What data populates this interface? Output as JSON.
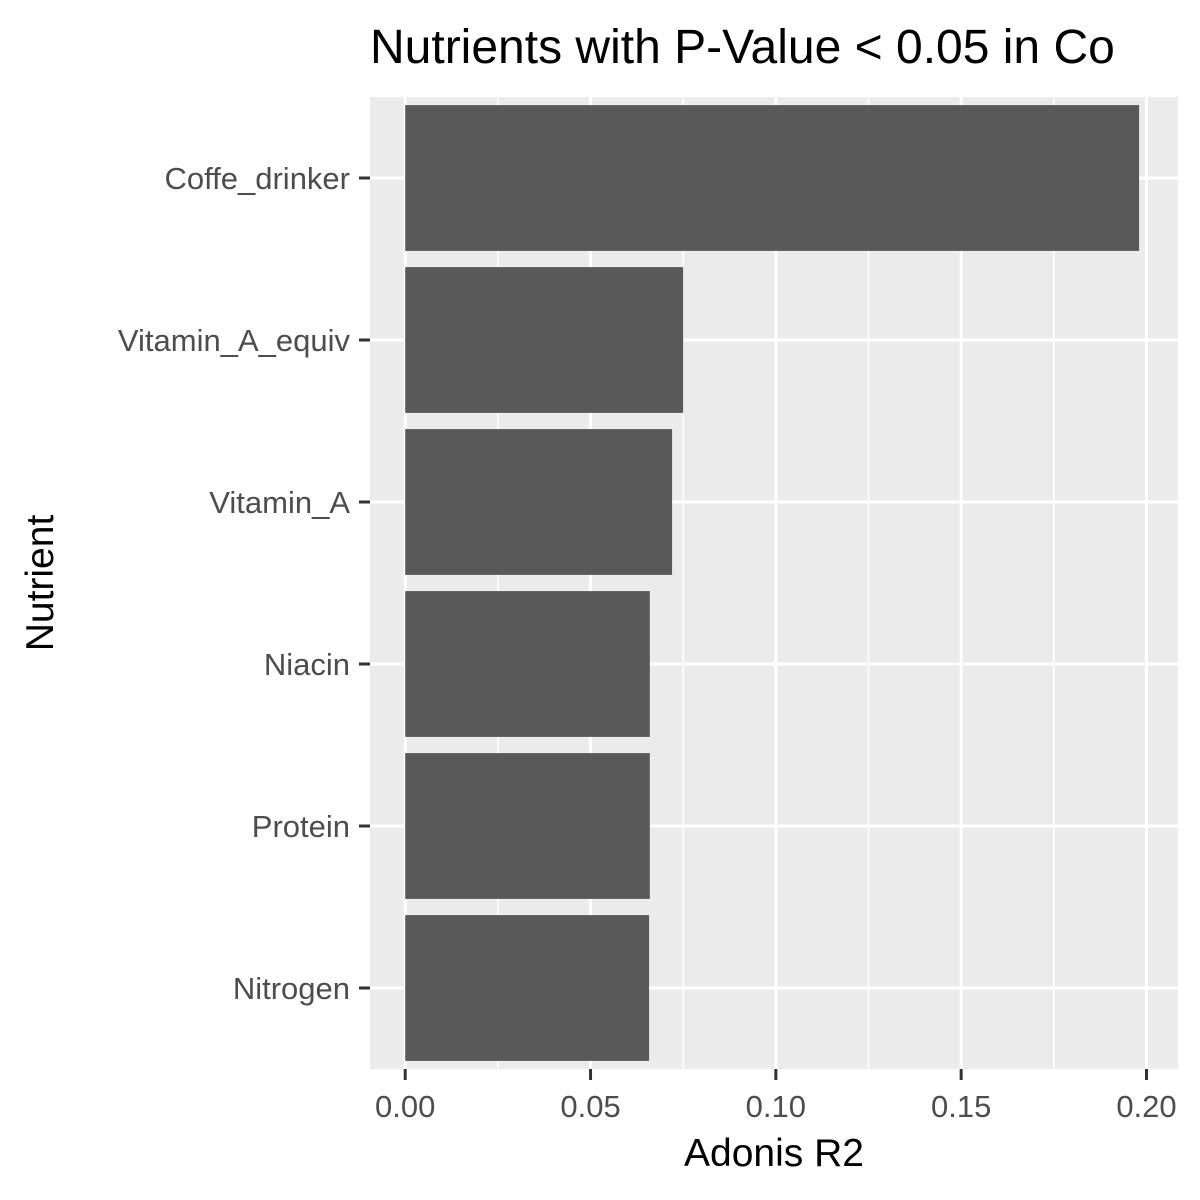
{
  "chart_data": {
    "type": "bar",
    "orientation": "horizontal",
    "title": "Nutrients with P-Value < 0.05 in Co",
    "xlabel": "Adonis R2",
    "ylabel": "Nutrient",
    "categories": [
      "Coffe_drinker",
      "Vitamin_A_equiv",
      "Vitamin_A",
      "Niacin",
      "Protein",
      "Nitrogen"
    ],
    "values": [
      0.198,
      0.075,
      0.072,
      0.066,
      0.066,
      0.0658
    ],
    "xlim": [
      -0.0095,
      0.2085
    ],
    "xticks": [
      0.0,
      0.05,
      0.1,
      0.15,
      0.2
    ],
    "xtick_labels": [
      "0.00",
      "0.05",
      "0.10",
      "0.15",
      "0.20"
    ],
    "grid": true,
    "legend": "none",
    "colors": {
      "bar": "#595959",
      "panel": "#ebebeb",
      "grid": "#ffffff",
      "tick_label": "#4d4d4d",
      "tick_mark": "#333333",
      "text": "#000000"
    }
  }
}
